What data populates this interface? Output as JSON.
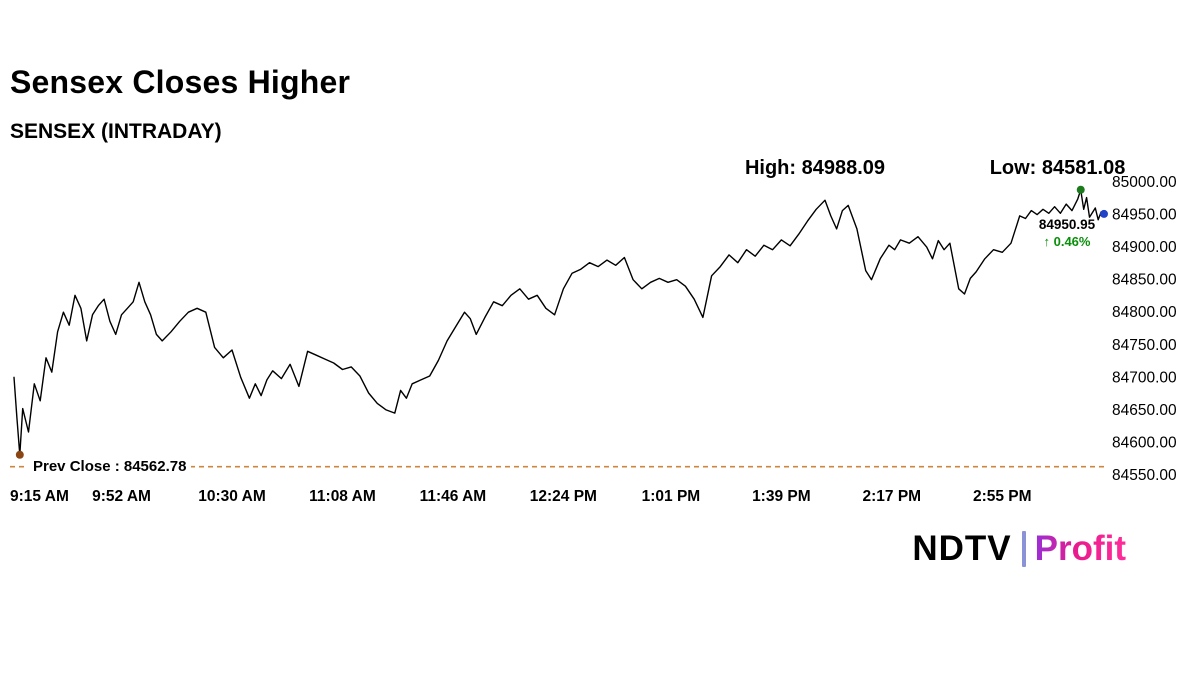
{
  "header": {
    "title": "Sensex Closes Higher",
    "subtitle": "SENSEX (INTRADAY)"
  },
  "logo": {
    "ndtv": "NDTV",
    "profit": "Profit"
  },
  "colors": {
    "line": "#000000",
    "prev_close_line": "#cd853f",
    "gain_green": "#0a8f0a",
    "low_marker": "#8b4513",
    "high_marker": "#1b7a1b",
    "last_marker": "#2243c8"
  },
  "chart_data": {
    "type": "line",
    "title": "SENSEX (INTRADAY)",
    "xlabel": "",
    "ylabel": "",
    "x_unit": "minutes since 9:15 AM",
    "x_range": [
      0,
      375
    ],
    "ylim": [
      84550,
      85000
    ],
    "grid": false,
    "y_axis_side": "right",
    "y_ticks": [
      {
        "value": 85000,
        "label": "85000.00"
      },
      {
        "value": 84950,
        "label": "84950.00"
      },
      {
        "value": 84900,
        "label": "84900.00"
      },
      {
        "value": 84850,
        "label": "84850.00"
      },
      {
        "value": 84800,
        "label": "84800.00"
      },
      {
        "value": 84750,
        "label": "84750.00"
      },
      {
        "value": 84700,
        "label": "84700.00"
      },
      {
        "value": 84650,
        "label": "84650.00"
      },
      {
        "value": 84600,
        "label": "84600.00"
      },
      {
        "value": 84550,
        "label": "84550.00"
      }
    ],
    "x_ticks": [
      {
        "t": 0,
        "label": "9:15 AM"
      },
      {
        "t": 37,
        "label": "9:52 AM"
      },
      {
        "t": 75,
        "label": "10:30 AM"
      },
      {
        "t": 113,
        "label": "11:08 AM"
      },
      {
        "t": 151,
        "label": "11:46 AM"
      },
      {
        "t": 189,
        "label": "12:24 PM"
      },
      {
        "t": 226,
        "label": "1:01 PM"
      },
      {
        "t": 264,
        "label": "1:39 PM"
      },
      {
        "t": 302,
        "label": "2:17 PM"
      },
      {
        "t": 340,
        "label": "2:55 PM"
      }
    ],
    "prev_close": {
      "value": 84562.78,
      "label": "Prev Close : 84562.78",
      "color": "#cd853f"
    },
    "high": {
      "value": 84988.09,
      "label": "High: 84988.09",
      "t": 367,
      "marker_color": "#1b7a1b"
    },
    "low": {
      "value": 84581.08,
      "label": "Low: 84581.08",
      "t": 2,
      "marker_color": "#8b4513"
    },
    "last": {
      "value": 84950.95,
      "label": "84950.95",
      "change_label": "↑ 0.46%",
      "t": 375,
      "marker_color": "#2243c8"
    },
    "series": [
      {
        "name": "SENSEX",
        "color": "#000000",
        "points": [
          [
            0,
            84700
          ],
          [
            1,
            84638
          ],
          [
            2,
            84581
          ],
          [
            3,
            84652
          ],
          [
            5,
            84616
          ],
          [
            7,
            84690
          ],
          [
            9,
            84664
          ],
          [
            11,
            84730
          ],
          [
            13,
            84708
          ],
          [
            15,
            84770
          ],
          [
            17,
            84800
          ],
          [
            19,
            84780
          ],
          [
            21,
            84826
          ],
          [
            23,
            84806
          ],
          [
            25,
            84756
          ],
          [
            27,
            84796
          ],
          [
            29,
            84810
          ],
          [
            31,
            84820
          ],
          [
            33,
            84786
          ],
          [
            35,
            84766
          ],
          [
            37,
            84796
          ],
          [
            39,
            84806
          ],
          [
            41,
            84816
          ],
          [
            43,
            84846
          ],
          [
            45,
            84816
          ],
          [
            47,
            84796
          ],
          [
            49,
            84766
          ],
          [
            51,
            84756
          ],
          [
            54,
            84770
          ],
          [
            57,
            84786
          ],
          [
            60,
            84800
          ],
          [
            63,
            84806
          ],
          [
            66,
            84800
          ],
          [
            69,
            84746
          ],
          [
            72,
            84730
          ],
          [
            75,
            84742
          ],
          [
            78,
            84700
          ],
          [
            81,
            84668
          ],
          [
            83,
            84690
          ],
          [
            85,
            84672
          ],
          [
            87,
            84696
          ],
          [
            89,
            84710
          ],
          [
            92,
            84698
          ],
          [
            95,
            84720
          ],
          [
            98,
            84686
          ],
          [
            101,
            84740
          ],
          [
            104,
            84734
          ],
          [
            107,
            84728
          ],
          [
            110,
            84722
          ],
          [
            113,
            84712
          ],
          [
            116,
            84716
          ],
          [
            119,
            84702
          ],
          [
            122,
            84676
          ],
          [
            125,
            84660
          ],
          [
            128,
            84650
          ],
          [
            131,
            84645
          ],
          [
            133,
            84680
          ],
          [
            135,
            84668
          ],
          [
            137,
            84690
          ],
          [
            140,
            84696
          ],
          [
            143,
            84702
          ],
          [
            146,
            84726
          ],
          [
            149,
            84756
          ],
          [
            152,
            84778
          ],
          [
            155,
            84800
          ],
          [
            157,
            84790
          ],
          [
            159,
            84766
          ],
          [
            162,
            84792
          ],
          [
            165,
            84816
          ],
          [
            168,
            84810
          ],
          [
            171,
            84826
          ],
          [
            174,
            84836
          ],
          [
            177,
            84820
          ],
          [
            180,
            84826
          ],
          [
            183,
            84806
          ],
          [
            186,
            84796
          ],
          [
            189,
            84836
          ],
          [
            192,
            84860
          ],
          [
            195,
            84866
          ],
          [
            198,
            84876
          ],
          [
            201,
            84870
          ],
          [
            204,
            84880
          ],
          [
            207,
            84872
          ],
          [
            210,
            84884
          ],
          [
            213,
            84850
          ],
          [
            216,
            84836
          ],
          [
            219,
            84846
          ],
          [
            222,
            84852
          ],
          [
            225,
            84846
          ],
          [
            228,
            84850
          ],
          [
            231,
            84840
          ],
          [
            234,
            84820
          ],
          [
            237,
            84792
          ],
          [
            240,
            84856
          ],
          [
            243,
            84870
          ],
          [
            246,
            84888
          ],
          [
            249,
            84876
          ],
          [
            252,
            84896
          ],
          [
            255,
            84886
          ],
          [
            258,
            84903
          ],
          [
            261,
            84896
          ],
          [
            264,
            84911
          ],
          [
            267,
            84902
          ],
          [
            270,
            84920
          ],
          [
            273,
            84940
          ],
          [
            276,
            84958
          ],
          [
            279,
            84972
          ],
          [
            281,
            84948
          ],
          [
            283,
            84928
          ],
          [
            285,
            84956
          ],
          [
            287,
            84964
          ],
          [
            290,
            84928
          ],
          [
            293,
            84864
          ],
          [
            295,
            84850
          ],
          [
            298,
            84882
          ],
          [
            301,
            84903
          ],
          [
            303,
            84896
          ],
          [
            305,
            84911
          ],
          [
            308,
            84906
          ],
          [
            311,
            84916
          ],
          [
            314,
            84900
          ],
          [
            316,
            84882
          ],
          [
            318,
            84910
          ],
          [
            320,
            84896
          ],
          [
            322,
            84906
          ],
          [
            325,
            84836
          ],
          [
            327,
            84828
          ],
          [
            329,
            84852
          ],
          [
            331,
            84862
          ],
          [
            334,
            84882
          ],
          [
            337,
            84896
          ],
          [
            340,
            84892
          ],
          [
            343,
            84906
          ],
          [
            346,
            84948
          ],
          [
            348,
            84944
          ],
          [
            350,
            84956
          ],
          [
            352,
            84950
          ],
          [
            354,
            84958
          ],
          [
            356,
            84952
          ],
          [
            358,
            84962
          ],
          [
            360,
            84952
          ],
          [
            362,
            84966
          ],
          [
            364,
            84956
          ],
          [
            366,
            84974
          ],
          [
            367,
            84988
          ],
          [
            368,
            84958
          ],
          [
            369,
            84976
          ],
          [
            370,
            84946
          ],
          [
            372,
            84960
          ],
          [
            373,
            84942
          ],
          [
            374,
            84954
          ],
          [
            375,
            84951
          ]
        ]
      }
    ]
  }
}
